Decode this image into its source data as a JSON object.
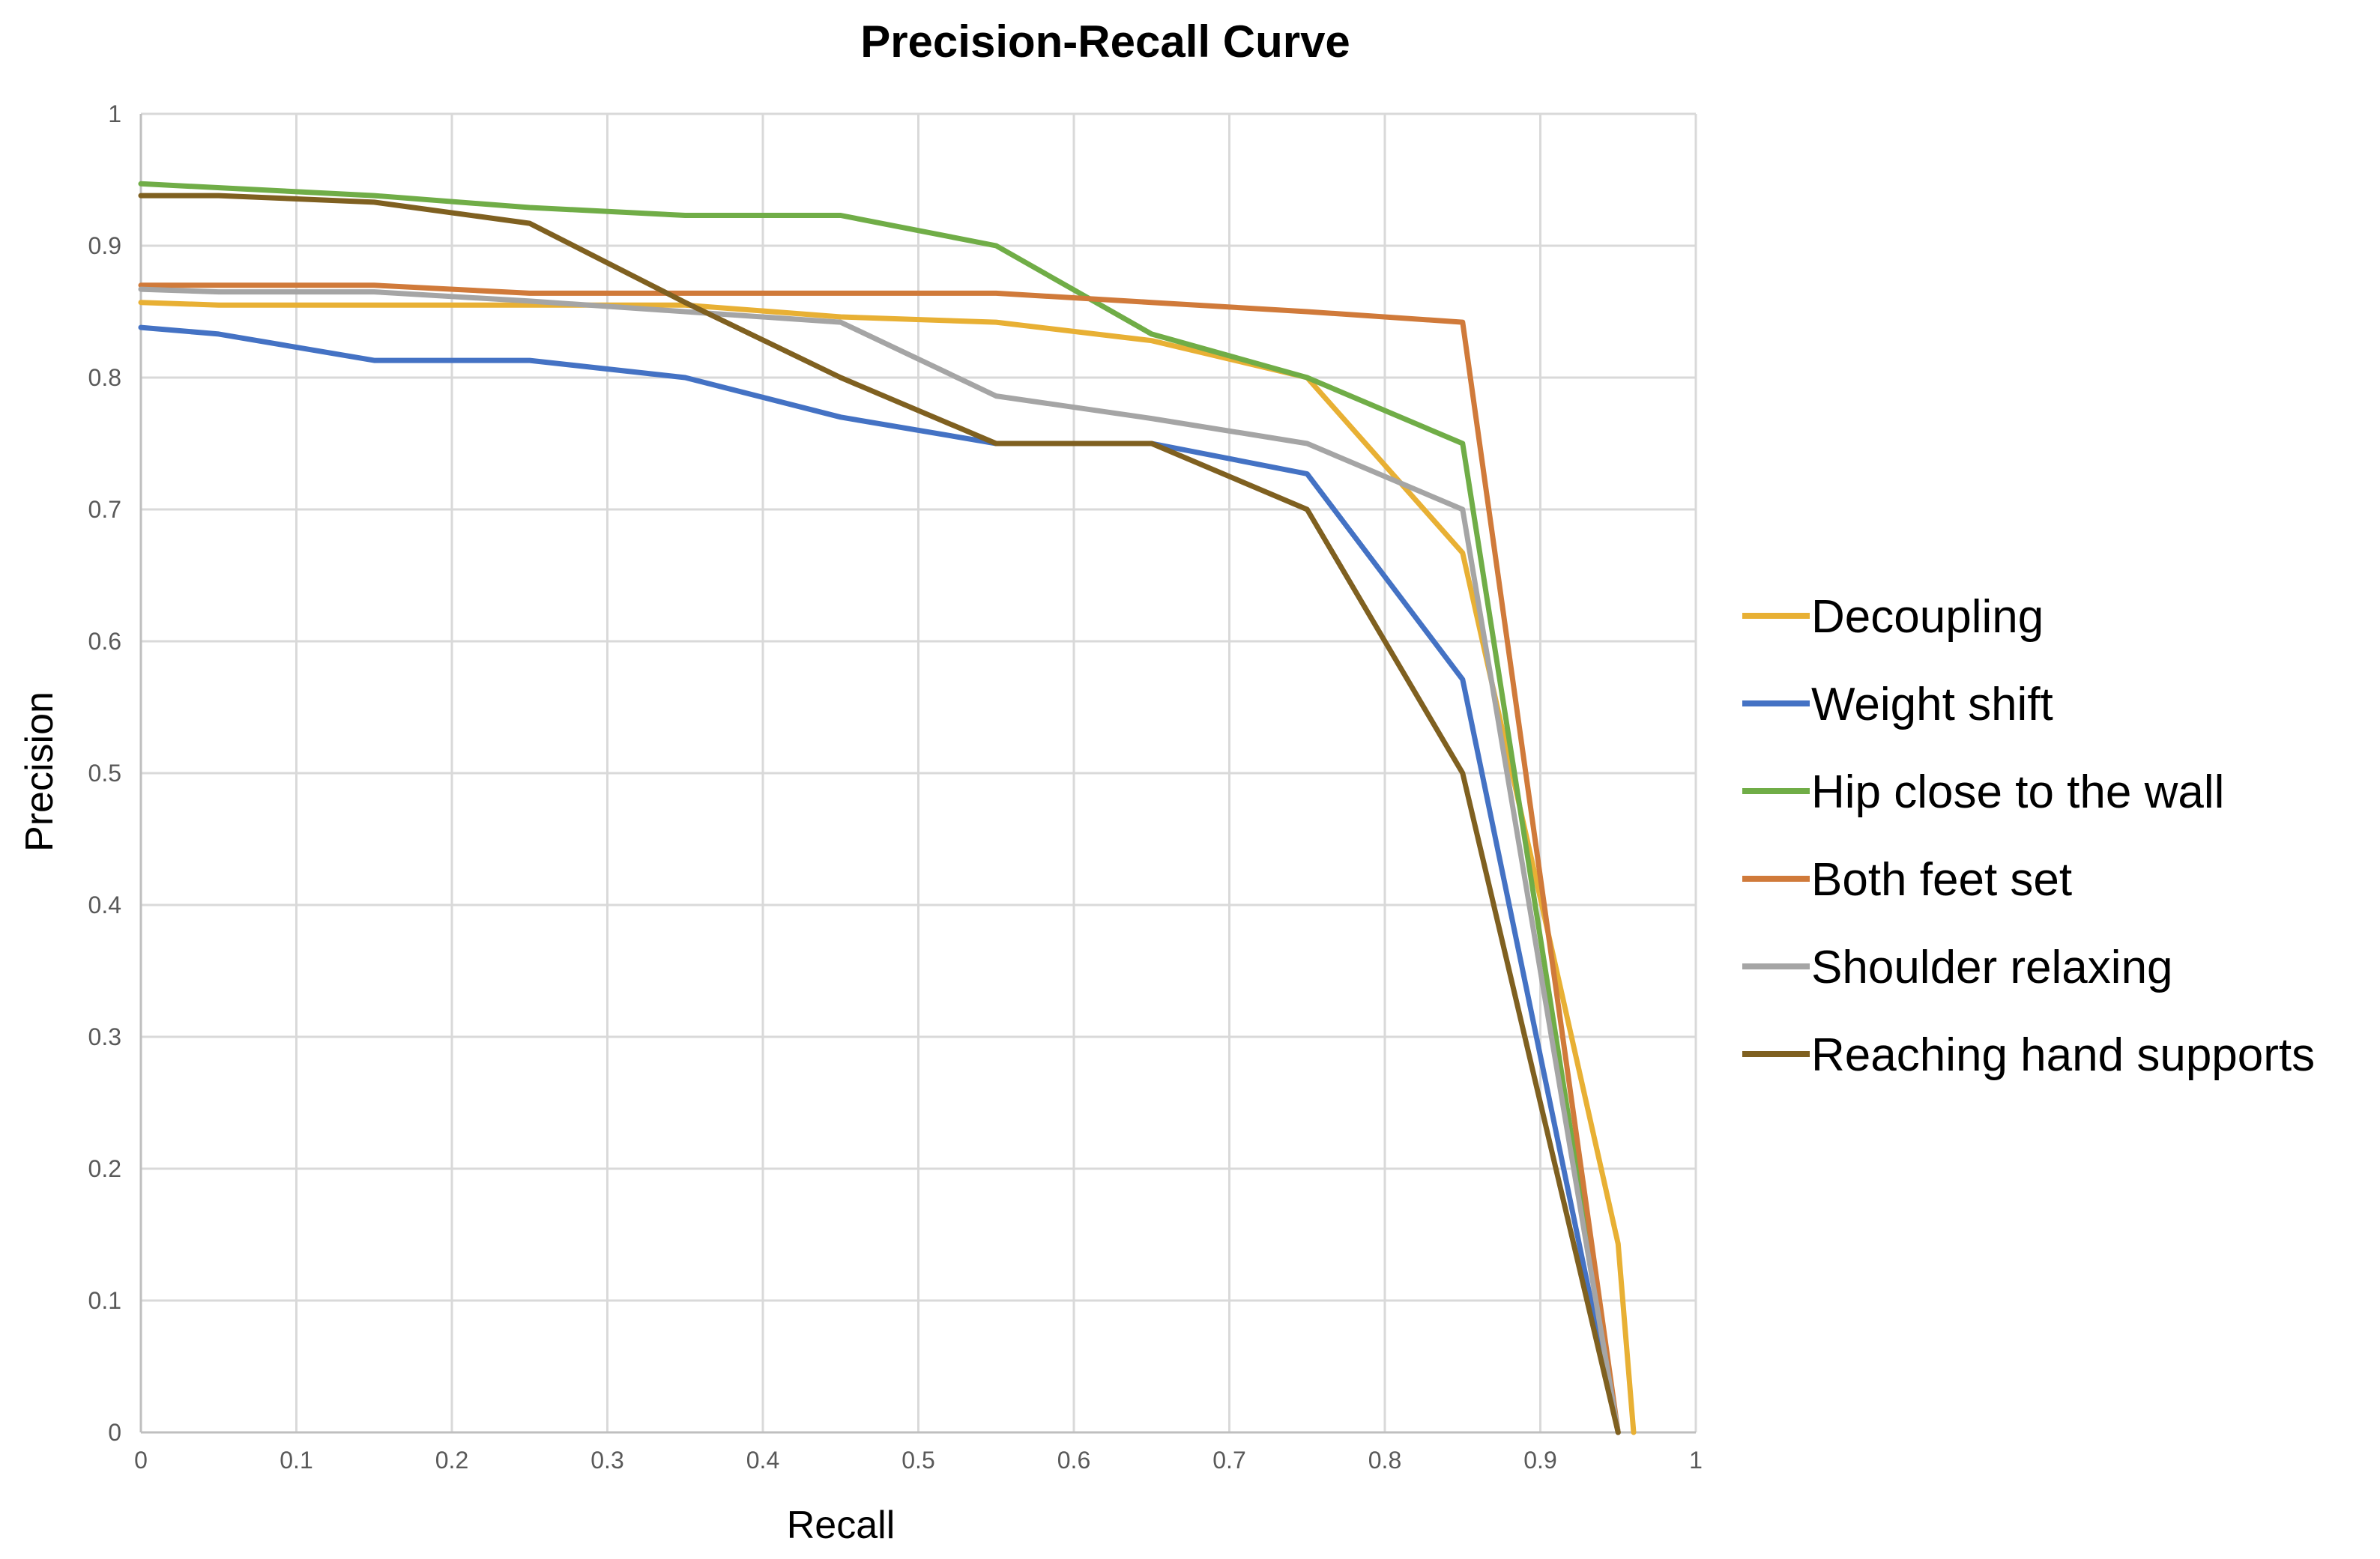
{
  "chart_data": {
    "type": "line",
    "title": "Precision-Recall Curve",
    "xlabel": "Recall",
    "ylabel": "Precision",
    "xlim": [
      0,
      1
    ],
    "ylim": [
      0,
      1
    ],
    "xticks": [
      "0",
      "0.1",
      "0.2",
      "0.3",
      "0.4",
      "0.5",
      "0.6",
      "0.7",
      "0.8",
      "0.9",
      "1"
    ],
    "yticks": [
      "0",
      "0.1",
      "0.2",
      "0.3",
      "0.4",
      "0.5",
      "0.6",
      "0.7",
      "0.8",
      "0.9",
      "1"
    ],
    "grid": true,
    "legend_position": "right",
    "series": [
      {
        "name": "Decoupling",
        "color": "#E8B034",
        "x": [
          0,
          0.05,
          0.15,
          0.25,
          0.35,
          0.45,
          0.55,
          0.65,
          0.75,
          0.85,
          0.95,
          0.96
        ],
        "y": [
          0.857,
          0.855,
          0.855,
          0.855,
          0.855,
          0.846,
          0.842,
          0.828,
          0.8,
          0.667,
          0.143,
          0
        ]
      },
      {
        "name": "Weight shift",
        "color": "#4472C4",
        "x": [
          0,
          0.05,
          0.15,
          0.25,
          0.35,
          0.45,
          0.55,
          0.65,
          0.75,
          0.85,
          0.95
        ],
        "y": [
          0.838,
          0.833,
          0.813,
          0.813,
          0.8,
          0.77,
          0.75,
          0.75,
          0.727,
          0.571,
          0
        ]
      },
      {
        "name": "Hip close to the wall",
        "color": "#70AD47",
        "x": [
          0,
          0.15,
          0.25,
          0.35,
          0.45,
          0.55,
          0.65,
          0.75,
          0.85,
          0.95
        ],
        "y": [
          0.947,
          0.938,
          0.929,
          0.923,
          0.923,
          0.9,
          0.833,
          0.8,
          0.75,
          0
        ]
      },
      {
        "name": "Both feet set",
        "color": "#D07A3A",
        "x": [
          0,
          0.15,
          0.25,
          0.35,
          0.45,
          0.55,
          0.65,
          0.75,
          0.85,
          0.95
        ],
        "y": [
          0.87,
          0.87,
          0.864,
          0.864,
          0.864,
          0.864,
          0.857,
          0.85,
          0.842,
          0
        ]
      },
      {
        "name": "Shoulder relaxing",
        "color": "#A5A5A5",
        "x": [
          0,
          0.05,
          0.15,
          0.25,
          0.35,
          0.45,
          0.55,
          0.65,
          0.75,
          0.85,
          0.95
        ],
        "y": [
          0.867,
          0.865,
          0.865,
          0.858,
          0.85,
          0.842,
          0.786,
          0.769,
          0.75,
          0.7,
          0
        ]
      },
      {
        "name": "Reaching hand supports",
        "color": "#7F6020",
        "x": [
          0,
          0.05,
          0.15,
          0.25,
          0.35,
          0.45,
          0.55,
          0.65,
          0.75,
          0.85,
          0.95
        ],
        "y": [
          0.938,
          0.938,
          0.933,
          0.917,
          0.857,
          0.8,
          0.75,
          0.75,
          0.7,
          0.5,
          0
        ]
      }
    ]
  }
}
